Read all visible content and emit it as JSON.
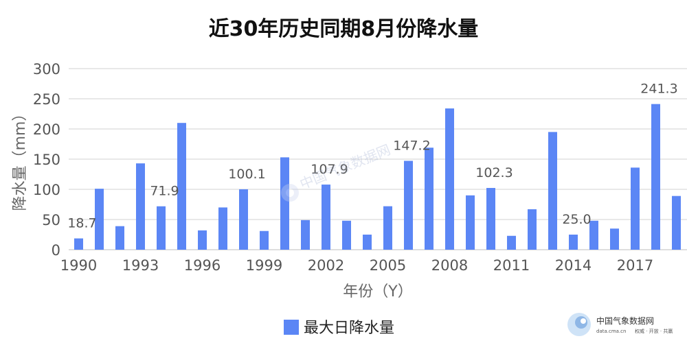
{
  "chart_data": {
    "type": "bar",
    "title": "近30年历史同期8月份降水量",
    "xlabel": "年份（Y）",
    "ylabel": "降水量（mm）",
    "ylim": [
      0,
      300
    ],
    "yticks": [
      0,
      50,
      100,
      150,
      200,
      250,
      300
    ],
    "xticks": [
      "1990",
      "1993",
      "1996",
      "1999",
      "2002",
      "2005",
      "2008",
      "2011",
      "2014",
      "2017"
    ],
    "grid": true,
    "legend_position": "bottom",
    "bar_color": "#5b86f5",
    "categories": [
      "1990",
      "1991",
      "1992",
      "1993",
      "1994",
      "1995",
      "1996",
      "1997",
      "1998",
      "1999",
      "2000",
      "2001",
      "2002",
      "2003",
      "2004",
      "2005",
      "2006",
      "2007",
      "2008",
      "2009",
      "2010",
      "2011",
      "2012",
      "2013",
      "2014",
      "2015",
      "2016",
      "2017",
      "2018",
      "2019"
    ],
    "series": [
      {
        "name": "最大日降水量",
        "values": [
          18.7,
          101,
          39,
          143,
          71.9,
          210,
          32,
          70,
          100.1,
          31,
          153,
          49,
          107.9,
          48,
          25,
          72,
          147.2,
          169,
          234,
          90,
          102.3,
          23,
          67,
          195,
          25.0,
          48,
          35,
          136,
          241.3,
          89
        ]
      }
    ],
    "data_labels": [
      {
        "category": "1990",
        "text": "18.7"
      },
      {
        "category": "1994",
        "text": "71.9"
      },
      {
        "category": "1998",
        "text": "100.1"
      },
      {
        "category": "2002",
        "text": "107.9"
      },
      {
        "category": "2006",
        "text": "147.2"
      },
      {
        "category": "2010",
        "text": "102.3"
      },
      {
        "category": "2014",
        "text": "25.0"
      },
      {
        "category": "2018",
        "text": "241.3"
      }
    ]
  },
  "watermark": {
    "brand": "中国气象数据网",
    "url": "data.cma.cn",
    "slogan": "权威 · 开放 · 共赢",
    "center_text": "中国气象数据网"
  }
}
